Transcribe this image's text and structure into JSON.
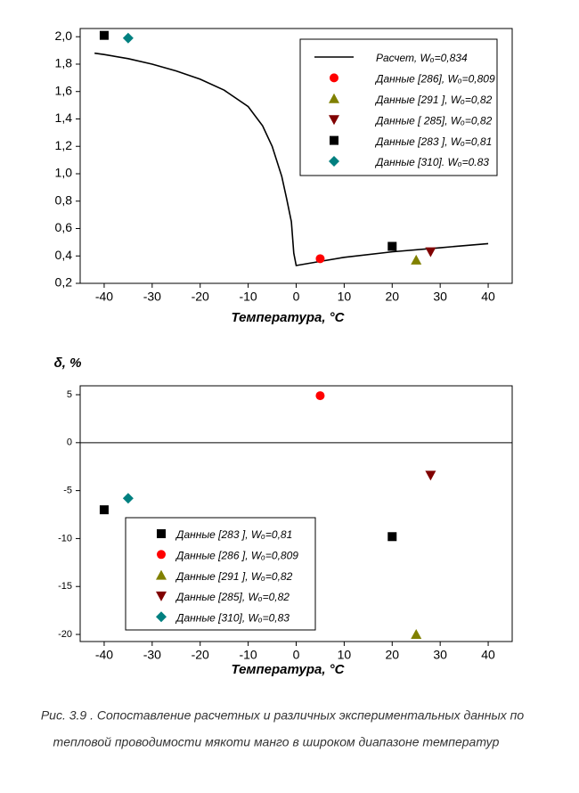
{
  "chart_data": [
    {
      "type": "line",
      "xlabel": "Температура, °C",
      "xlim": [
        -45,
        45
      ],
      "ylim": [
        0.2,
        2.06
      ],
      "xticks": [
        -40,
        -30,
        -20,
        -10,
        0,
        10,
        20,
        30,
        40
      ],
      "yticks": [
        {
          "value": 0.2,
          "label": "0,2"
        },
        {
          "value": 0.4,
          "label": "0,4"
        },
        {
          "value": 0.6,
          "label": "0,6"
        },
        {
          "value": 0.8,
          "label": "0,8"
        },
        {
          "value": 1.0,
          "label": "1,0"
        },
        {
          "value": 1.2,
          "label": "1,2"
        },
        {
          "value": 1.4,
          "label": "1,4"
        },
        {
          "value": 1.6,
          "label": "1,6"
        },
        {
          "value": 1.8,
          "label": "1,8"
        },
        {
          "value": 2.0,
          "label": "2,0"
        }
      ],
      "series": [
        {
          "name": "Расчет, Wₒ=0,834",
          "color": "#000000",
          "marker": "line",
          "x": [
            -42,
            -40,
            -35,
            -30,
            -25,
            -20,
            -15,
            -10,
            -7,
            -5,
            -3,
            -2,
            -1,
            -0.5,
            0,
            5,
            10,
            20,
            30,
            40
          ],
          "values": [
            1.88,
            1.87,
            1.84,
            1.8,
            1.75,
            1.69,
            1.61,
            1.49,
            1.35,
            1.2,
            0.98,
            0.82,
            0.65,
            0.42,
            0.33,
            0.36,
            0.39,
            0.43,
            0.46,
            0.49
          ]
        },
        {
          "name": "Данные [286], Wₒ=0,809",
          "color": "#ff0000",
          "marker": "circle",
          "x": [
            5
          ],
          "values": [
            0.38
          ]
        },
        {
          "name": "Данные [291 ], Wₒ=0,82",
          "color": "#808000",
          "marker": "triangle-up",
          "x": [
            25
          ],
          "values": [
            0.37
          ]
        },
        {
          "name": "Данные [ 285], Wₒ=0,82",
          "color": "#800000",
          "marker": "triangle-down",
          "x": [
            28
          ],
          "values": [
            0.43
          ]
        },
        {
          "name": "Данные [283 ], Wₒ=0,81",
          "color": "#000000",
          "marker": "square",
          "x": [
            -40,
            20
          ],
          "values": [
            2.01,
            0.47
          ]
        },
        {
          "name": "Данные [310]. Wₒ=0.83",
          "color": "#008080",
          "marker": "diamond",
          "x": [
            -35
          ],
          "values": [
            1.99
          ]
        }
      ]
    },
    {
      "type": "scatter",
      "ylabel": "δ, %",
      "xlabel": "Температура, °C",
      "xlim": [
        -45,
        45
      ],
      "ylim": [
        -20.74,
        5.93
      ],
      "xticks": [
        -40,
        -30,
        -20,
        -10,
        0,
        10,
        20,
        30,
        40
      ],
      "yticks": [
        -20,
        -15,
        -10,
        -5,
        0,
        5
      ],
      "hline": 0,
      "series": [
        {
          "name": "Данные [283 ], Wₒ=0,81",
          "color": "#000000",
          "marker": "square",
          "x": [
            -40,
            20
          ],
          "values": [
            -7,
            -9.8
          ]
        },
        {
          "name": "Данные [286 ], Wₒ=0,809",
          "color": "#ff0000",
          "marker": "circle",
          "x": [
            5
          ],
          "values": [
            4.9
          ]
        },
        {
          "name": "Данные [291 ], Wₒ=0,82",
          "color": "#808000",
          "marker": "triangle-up",
          "x": [
            25
          ],
          "values": [
            -20
          ]
        },
        {
          "name": "Данные [285], Wₒ=0,82",
          "color": "#800000",
          "marker": "triangle-down",
          "x": [
            28
          ],
          "values": [
            -3.4
          ]
        },
        {
          "name": "Данные [310], Wₒ=0,83",
          "color": "#008080",
          "marker": "diamond",
          "x": [
            -35
          ],
          "values": [
            -5.8
          ]
        }
      ]
    }
  ],
  "caption": {
    "lines": [
      "Рис. 3.9 . Сопоставление расчетных и различных экспериментальных данных  по",
      "тепловой проводимости мякоти манго  в широком диапазоне температур"
    ]
  }
}
